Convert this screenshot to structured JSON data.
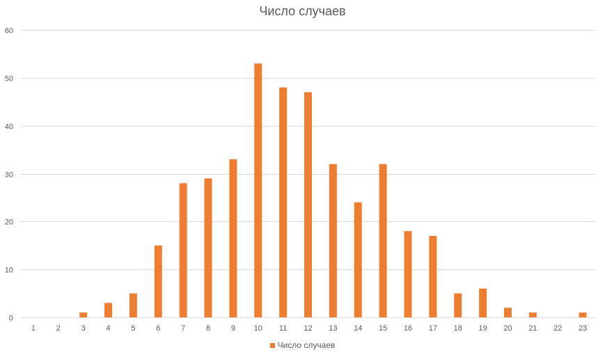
{
  "chart_data": {
    "type": "bar",
    "title": "Число случаев",
    "xlabel": "",
    "ylabel": "",
    "categories": [
      "1",
      "2",
      "3",
      "4",
      "5",
      "6",
      "7",
      "8",
      "9",
      "10",
      "11",
      "12",
      "13",
      "14",
      "15",
      "16",
      "17",
      "18",
      "19",
      "20",
      "21",
      "22",
      "23"
    ],
    "series": [
      {
        "name": "Число случаев",
        "color": "#ED7D31",
        "values": [
          0,
          0,
          1,
          3,
          5,
          15,
          28,
          29,
          33,
          53,
          48,
          47,
          32,
          24,
          32,
          18,
          17,
          5,
          6,
          2,
          1,
          0,
          1
        ]
      }
    ],
    "ylim": [
      0,
      60
    ],
    "yticks": [
      0,
      10,
      20,
      30,
      40,
      50,
      60
    ],
    "grid": true,
    "legend": "bottom",
    "gridline_color": "#D9D9D9"
  }
}
